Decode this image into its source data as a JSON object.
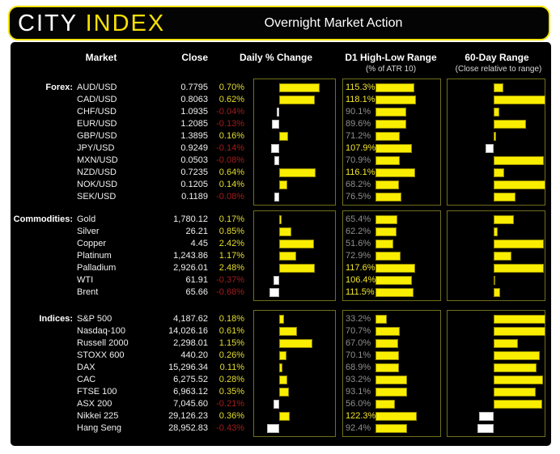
{
  "ui": {
    "brand_city": "CITY ",
    "brand_index": "INDEX",
    "title": "Overnight Market Action",
    "colors": {
      "accent_yellow": "#f5e003",
      "bar_yellow": "#f9ed00",
      "bar_white": "#ffffff",
      "positive_text": "#e4de2e",
      "negative_text": "#a11d1d",
      "muted_gray": "#8f8f8f",
      "card_bg": "#000000",
      "page_bg": "#ffffff"
    }
  },
  "chart_data": {
    "type": "table",
    "title": "Overnight Market Action",
    "columns": {
      "market": "Market",
      "close": "Close",
      "daily": "Daily % Change",
      "d1": "D1 High-Low Range",
      "d1_sub": "(% of ATR 10)",
      "r60": "60-Day Range",
      "r60_sub": "(Close relative to range)"
    },
    "legend_note": "Daily % bars: yellow = up (right of zero line), white = down (left). D1 bars sized to % of ATR10; labels >=100% highlighted yellow. 60-day bars: yellow = close above range midpoint (extent toward 60d high), white = below.",
    "sections": [
      {
        "label": "Forex:",
        "daily_axis_limit_pct": 1.0,
        "rows": [
          {
            "market": "AUD/USD",
            "close": "0.7795",
            "change_pct": 0.7,
            "change_label": "0.70%",
            "atr_pct": 115.3,
            "atr_label": "115.3%",
            "range60": 0.19
          },
          {
            "market": "CAD/USD",
            "close": "0.8063",
            "change_pct": 0.62,
            "change_label": "0.62%",
            "atr_pct": 118.1,
            "atr_label": "118.1%",
            "range60": 1.0
          },
          {
            "market": "CHF/USD",
            "close": "1.0935",
            "change_pct": -0.04,
            "change_label": "-0.04%",
            "atr_pct": 90.1,
            "atr_label": "90.1%",
            "range60": 0.11
          },
          {
            "market": "EUR/USD",
            "close": "1.2085",
            "change_pct": -0.13,
            "change_label": "-0.13%",
            "atr_pct": 89.6,
            "atr_label": "89.6%",
            "range60": 0.63
          },
          {
            "market": "GBP/USD",
            "close": "1.3895",
            "change_pct": 0.16,
            "change_label": "0.16%",
            "atr_pct": 71.2,
            "atr_label": "71.2%",
            "range60": 0.05
          },
          {
            "market": "JPY/USD",
            "close": "0.9249",
            "change_pct": -0.14,
            "change_label": "-0.14%",
            "atr_pct": 107.9,
            "atr_label": "107.9%",
            "range60": -0.17
          },
          {
            "market": "MXN/USD",
            "close": "0.0503",
            "change_pct": -0.08,
            "change_label": "-0.08%",
            "atr_pct": 70.9,
            "atr_label": "70.9%",
            "range60": 0.97
          },
          {
            "market": "NZD/USD",
            "close": "0.7235",
            "change_pct": 0.64,
            "change_label": "0.64%",
            "atr_pct": 116.1,
            "atr_label": "116.1%",
            "range60": 0.2
          },
          {
            "market": "NOK/USD",
            "close": "0.1205",
            "change_pct": 0.14,
            "change_label": "0.14%",
            "atr_pct": 68.2,
            "atr_label": "68.2%",
            "range60": 1.0
          },
          {
            "market": "SEK/USD",
            "close": "0.1189",
            "change_pct": -0.08,
            "change_label": "-0.08%",
            "atr_pct": 76.5,
            "atr_label": "76.5%",
            "range60": 0.42
          }
        ]
      },
      {
        "label": "Commodities:",
        "daily_axis_limit_pct": 4.0,
        "rows": [
          {
            "market": "Gold",
            "close": "1,780.12",
            "change_pct": 0.17,
            "change_label": "0.17%",
            "atr_pct": 65.4,
            "atr_label": "65.4%",
            "range60": 0.39
          },
          {
            "market": "Silver",
            "close": "26.21",
            "change_pct": 0.85,
            "change_label": "0.85%",
            "atr_pct": 62.2,
            "atr_label": "62.2%",
            "range60": 0.08
          },
          {
            "market": "Copper",
            "close": "4.45",
            "change_pct": 2.42,
            "change_label": "2.42%",
            "atr_pct": 51.6,
            "atr_label": "51.6%",
            "range60": 0.97
          },
          {
            "market": "Platinum",
            "close": "1,243.86",
            "change_pct": 1.17,
            "change_label": "1.17%",
            "atr_pct": 72.9,
            "atr_label": "72.9%",
            "range60": 0.34
          },
          {
            "market": "Palladium",
            "close": "2,926.01",
            "change_pct": 2.48,
            "change_label": "2.48%",
            "atr_pct": 117.6,
            "atr_label": "117.6%",
            "range60": 0.97
          },
          {
            "market": "WTI",
            "close": "61.91",
            "change_pct": -0.37,
            "change_label": "-0.37%",
            "atr_pct": 106.4,
            "atr_label": "106.4%",
            "range60": 0.02
          },
          {
            "market": "Brent",
            "close": "65.66",
            "change_pct": -0.68,
            "change_label": "-0.68%",
            "atr_pct": 111.5,
            "atr_label": "111.5%",
            "range60": 0.13
          }
        ]
      },
      {
        "label": "Indices:",
        "daily_axis_limit_pct": 2.0,
        "rows": [
          {
            "market": "S&P 500",
            "close": "4,187.62",
            "change_pct": 0.18,
            "change_label": "0.18%",
            "atr_pct": 33.2,
            "atr_label": "33.2%",
            "range60": 1.0
          },
          {
            "market": "Nasdaq-100",
            "close": "14,026.16",
            "change_pct": 0.61,
            "change_label": "0.61%",
            "atr_pct": 70.7,
            "atr_label": "70.7%",
            "range60": 1.0
          },
          {
            "market": "Russell 2000",
            "close": "2,298.01",
            "change_pct": 1.15,
            "change_label": "1.15%",
            "atr_pct": 67.0,
            "atr_label": "67.0%",
            "range60": 0.47
          },
          {
            "market": "STOXX 600",
            "close": "440.20",
            "change_pct": 0.26,
            "change_label": "0.26%",
            "atr_pct": 70.1,
            "atr_label": "70.1%",
            "range60": 0.89
          },
          {
            "market": "DAX",
            "close": "15,296.34",
            "change_pct": 0.11,
            "change_label": "0.11%",
            "atr_pct": 68.9,
            "atr_label": "68.9%",
            "range60": 0.83
          },
          {
            "market": "CAC",
            "close": "6,275.52",
            "change_pct": 0.28,
            "change_label": "0.28%",
            "atr_pct": 93.2,
            "atr_label": "93.2%",
            "range60": 0.95
          },
          {
            "market": "FTSE 100",
            "close": "6,963.12",
            "change_pct": 0.35,
            "change_label": "0.35%",
            "atr_pct": 93.1,
            "atr_label": "93.1%",
            "range60": 0.81
          },
          {
            "market": "ASX 200",
            "close": "7,045.60",
            "change_pct": -0.21,
            "change_label": "-0.21%",
            "atr_pct": 56.0,
            "atr_label": "56.0%",
            "range60": 0.94
          },
          {
            "market": "Nikkei 225",
            "close": "29,126.23",
            "change_pct": 0.36,
            "change_label": "0.36%",
            "atr_pct": 122.3,
            "atr_label": "122.3%",
            "range60": -0.31
          },
          {
            "market": "Hang Seng",
            "close": "28,952.83",
            "change_pct": -0.43,
            "change_label": "-0.43%",
            "atr_pct": 92.4,
            "atr_label": "92.4%",
            "range60": -0.35
          }
        ]
      }
    ]
  }
}
